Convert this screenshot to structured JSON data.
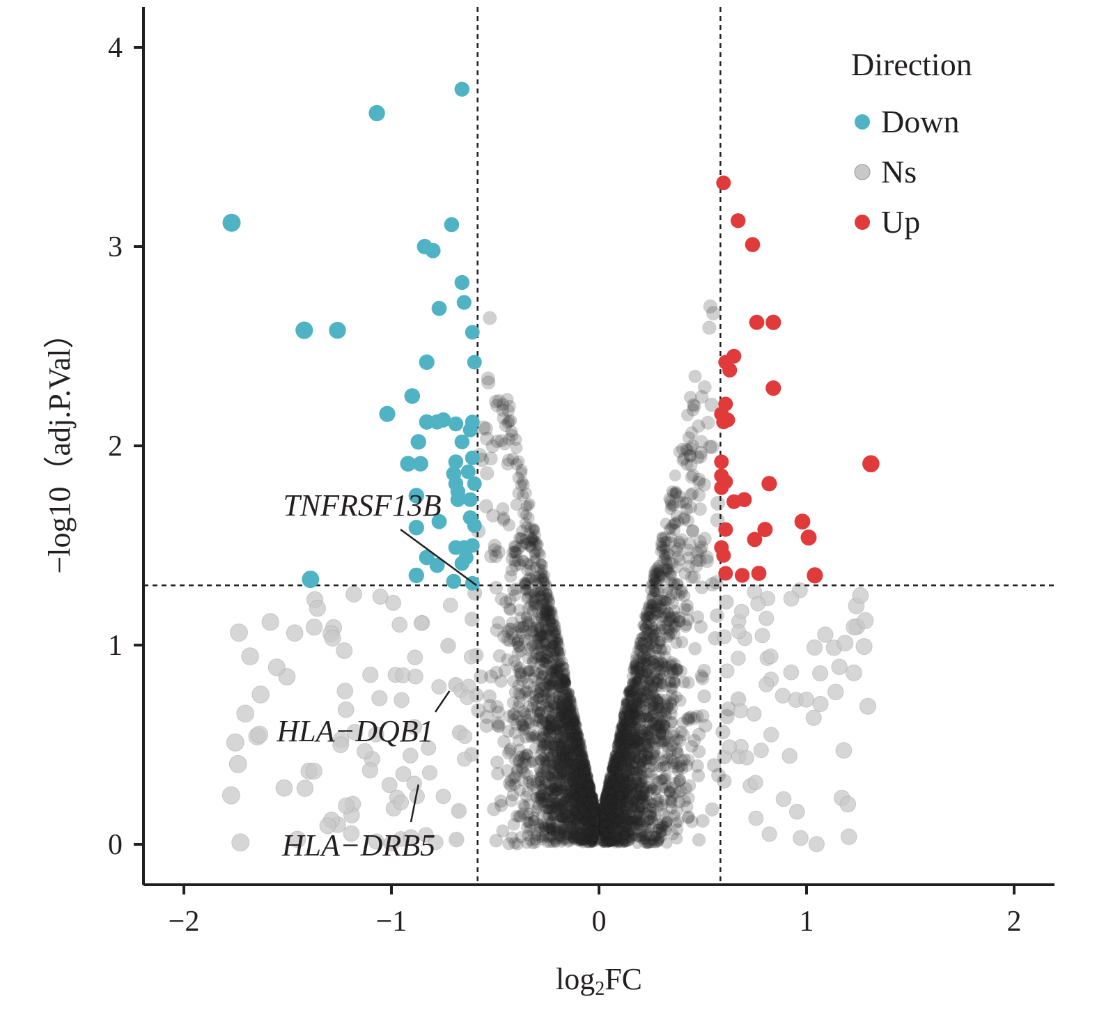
{
  "chart_data": {
    "type": "scatter",
    "xlabel_main": "log",
    "xlabel_sub": "2",
    "xlabel_end": "FC",
    "ylabel": "−log10（adj.P.Val）",
    "xlim": [
      -2.2,
      2.2
    ],
    "ylim": [
      -0.2,
      4.2
    ],
    "x_ticks": [
      -2,
      -1,
      0,
      1,
      2
    ],
    "x_tick_labels": [
      "−2",
      "−1",
      "0",
      "1",
      "2"
    ],
    "y_ticks": [
      0,
      1,
      2,
      3,
      4
    ],
    "y_tick_labels": [
      "0",
      "1",
      "2",
      "3",
      "4"
    ],
    "grid": false,
    "thresholds": {
      "logFC": [
        -0.585,
        0.585
      ],
      "neg_log10_p": 1.3
    },
    "legend": {
      "title": "Direction",
      "position": "top-right",
      "entries": [
        {
          "label": "Down",
          "color": "#4fb3c4"
        },
        {
          "label": "Ns",
          "color": "#c8c8c8"
        },
        {
          "label": "Up",
          "color": "#e03a3a"
        }
      ]
    },
    "colors": {
      "Down": "#4fb3c4",
      "Ns": "#c8c8c8",
      "NsDense": "#2b2b2b",
      "Up": "#e03a3a"
    },
    "series": [
      {
        "name": "Down",
        "points": [
          [
            -0.66,
            3.79
          ],
          [
            -1.07,
            3.67
          ],
          [
            -1.77,
            3.12
          ],
          [
            -0.71,
            3.11
          ],
          [
            -0.84,
            3.0
          ],
          [
            -0.8,
            2.98
          ],
          [
            -0.66,
            2.82
          ],
          [
            -0.65,
            2.72
          ],
          [
            -0.77,
            2.69
          ],
          [
            -1.42,
            2.58
          ],
          [
            -1.26,
            2.58
          ],
          [
            -0.61,
            2.57
          ],
          [
            -0.83,
            2.42
          ],
          [
            -0.6,
            2.42
          ],
          [
            -0.9,
            2.25
          ],
          [
            -1.02,
            2.16
          ],
          [
            -0.83,
            2.12
          ],
          [
            -0.78,
            2.12
          ],
          [
            -0.75,
            2.13
          ],
          [
            -0.69,
            2.11
          ],
          [
            -0.61,
            2.12
          ],
          [
            -0.62,
            2.08
          ],
          [
            -0.87,
            2.02
          ],
          [
            -0.66,
            2.02
          ],
          [
            -0.61,
            1.94
          ],
          [
            -0.92,
            1.91
          ],
          [
            -0.86,
            1.91
          ],
          [
            -0.69,
            1.92
          ],
          [
            -0.7,
            1.86
          ],
          [
            -0.63,
            1.87
          ],
          [
            -0.69,
            1.81
          ],
          [
            -0.6,
            1.81
          ],
          [
            -0.68,
            1.77
          ],
          [
            -0.62,
            1.73
          ],
          [
            -0.68,
            1.73
          ],
          [
            -0.88,
            1.75
          ],
          [
            -0.88,
            1.59
          ],
          [
            -0.77,
            1.62
          ],
          [
            -0.62,
            1.64
          ],
          [
            -0.6,
            1.6
          ],
          [
            -0.69,
            1.49
          ],
          [
            -0.65,
            1.49
          ],
          [
            -0.61,
            1.5
          ],
          [
            -0.64,
            1.44
          ],
          [
            -0.83,
            1.44
          ],
          [
            -0.78,
            1.4
          ],
          [
            -0.66,
            1.41
          ],
          [
            -0.88,
            1.35
          ],
          [
            -1.39,
            1.33
          ],
          [
            -0.7,
            1.32
          ],
          [
            -0.61,
            1.31
          ]
        ]
      },
      {
        "name": "Up",
        "points": [
          [
            0.6,
            3.32
          ],
          [
            0.67,
            3.13
          ],
          [
            0.74,
            3.01
          ],
          [
            0.76,
            2.62
          ],
          [
            0.84,
            2.62
          ],
          [
            0.65,
            2.45
          ],
          [
            0.61,
            2.42
          ],
          [
            0.63,
            2.38
          ],
          [
            0.84,
            2.29
          ],
          [
            0.61,
            2.21
          ],
          [
            0.59,
            2.16
          ],
          [
            0.6,
            2.12
          ],
          [
            0.62,
            2.13
          ],
          [
            1.31,
            1.91
          ],
          [
            0.59,
            1.92
          ],
          [
            0.59,
            1.85
          ],
          [
            0.61,
            1.82
          ],
          [
            0.59,
            1.79
          ],
          [
            0.82,
            1.81
          ],
          [
            0.65,
            1.72
          ],
          [
            0.7,
            1.73
          ],
          [
            0.98,
            1.62
          ],
          [
            0.61,
            1.58
          ],
          [
            0.8,
            1.58
          ],
          [
            1.01,
            1.54
          ],
          [
            0.75,
            1.53
          ],
          [
            0.59,
            1.49
          ],
          [
            0.6,
            1.45
          ],
          [
            0.61,
            1.36
          ],
          [
            0.69,
            1.35
          ],
          [
            0.77,
            1.36
          ],
          [
            1.04,
            1.35
          ]
        ]
      }
    ],
    "annotations": [
      {
        "text": "TNFRSF13B",
        "point": [
          -0.59,
          1.3
        ]
      },
      {
        "text": "HLA−DQB1",
        "point": [
          -0.72,
          0.77
        ]
      },
      {
        "text": "HLA−DRB5",
        "point": [
          -0.87,
          0.3
        ]
      }
    ]
  }
}
